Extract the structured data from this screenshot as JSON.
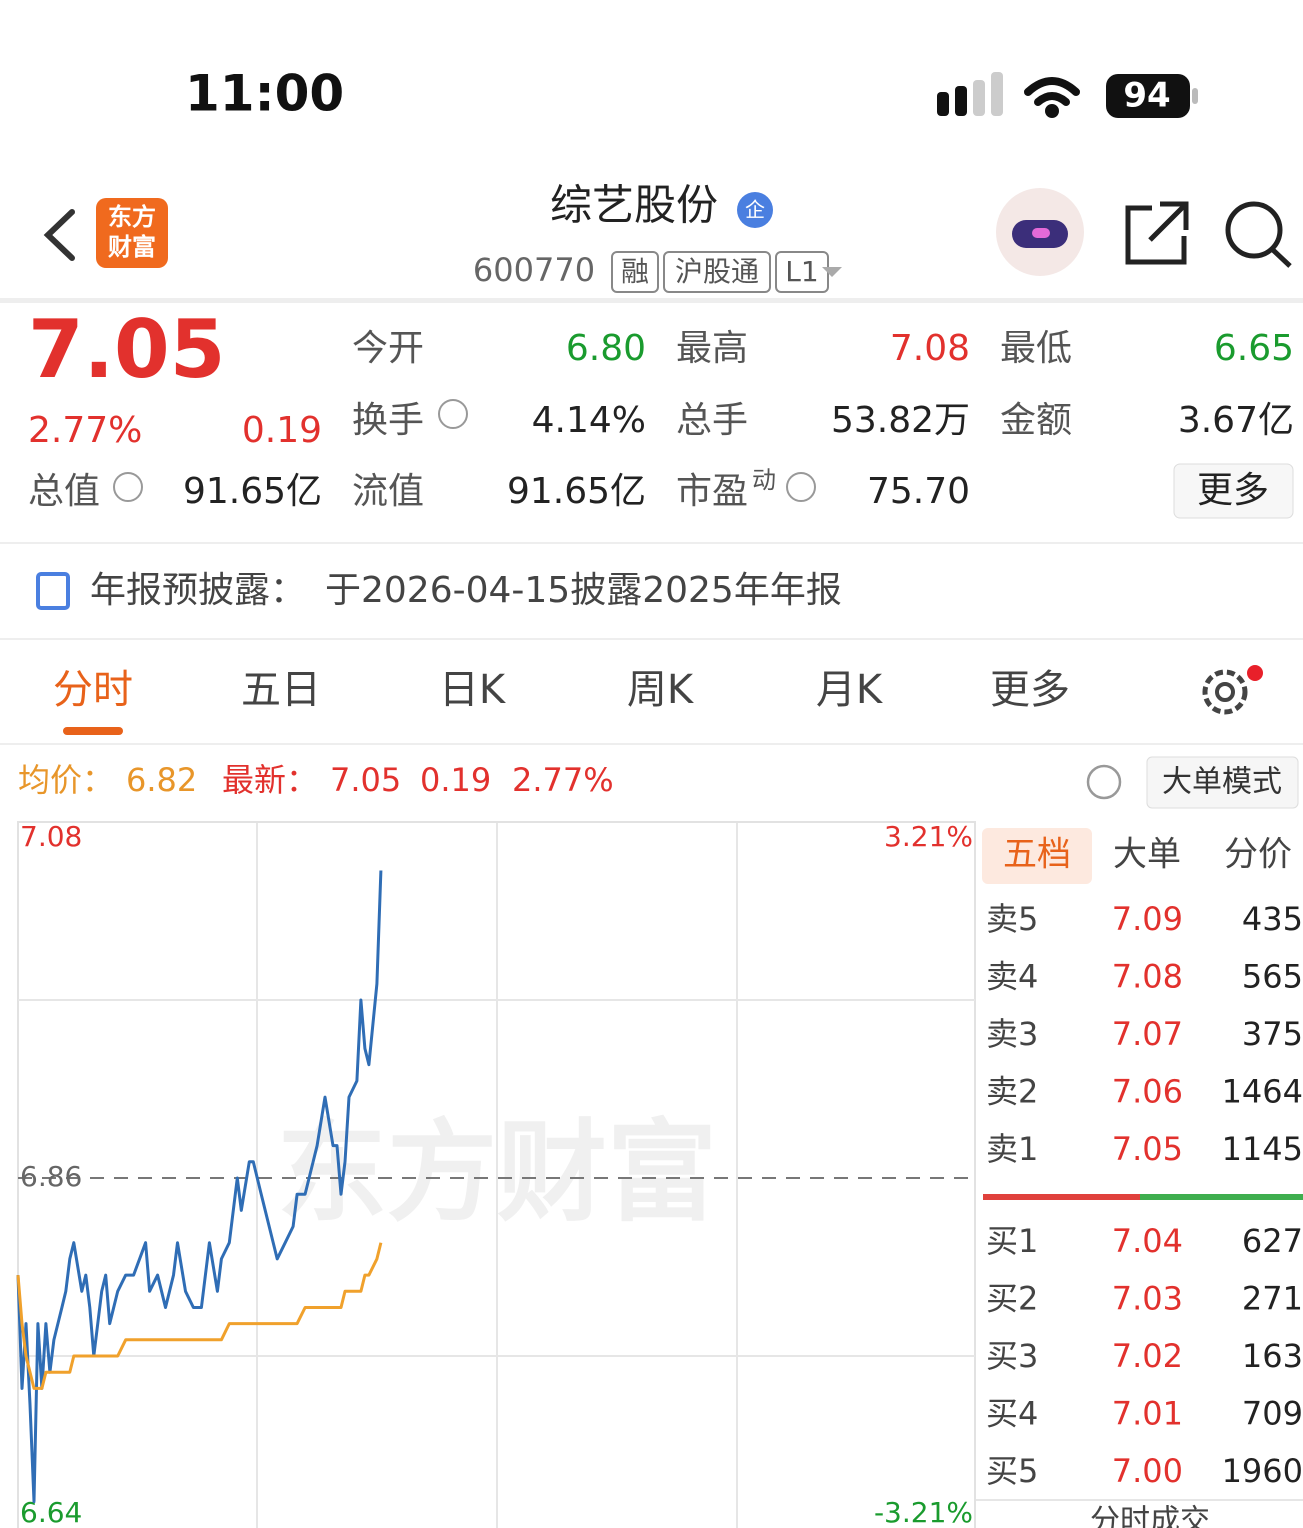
{
  "status_bar": {
    "time": "11:00",
    "battery": "94"
  },
  "header": {
    "brand": [
      "东方",
      "财富"
    ],
    "name": "综艺股份",
    "badge": "企",
    "code": "600770",
    "tags": [
      "融",
      "沪股通",
      "L1"
    ]
  },
  "quote": {
    "price": "7.05",
    "change_percent": "2.77%",
    "change": "0.19",
    "fields": [
      {
        "label": "今开",
        "value": "6.80",
        "color": "#1a9b2e"
      },
      {
        "label": "最高",
        "value": "7.08",
        "color": "#e2312d"
      },
      {
        "label": "最低",
        "value": "6.65",
        "color": "#1a9b2e"
      },
      {
        "label": "换手",
        "value": "4.14%"
      },
      {
        "label": "总手",
        "value": "53.82万"
      },
      {
        "label": "金额",
        "value": "3.67亿"
      },
      {
        "label": "总值",
        "value": "91.65亿"
      },
      {
        "label": "流值",
        "value": "91.65亿"
      },
      {
        "label": "市盈",
        "superscript": "动",
        "value": "75.70"
      }
    ],
    "more_button": "更多"
  },
  "notice": {
    "label": "年报预披露：",
    "text": "于2026-04-15披露2025年年报"
  },
  "tabs": {
    "items": [
      "分时",
      "五日",
      "日K",
      "周K",
      "月K",
      "更多"
    ],
    "active": 0
  },
  "info_bar": {
    "avg_label": "均价：",
    "avg": "6.82",
    "latest_label": "最新：",
    "latest": "7.05",
    "change": "0.19",
    "change_percent": "2.77%",
    "mode_button": "大单模式"
  },
  "chart_data": {
    "type": "line",
    "watermark": "东方财富",
    "x": [
      0,
      1,
      2,
      3,
      4,
      5,
      6,
      7,
      8,
      9,
      11,
      12,
      13,
      14,
      16,
      17,
      18,
      19,
      21,
      22,
      23,
      24,
      25,
      27,
      29,
      32,
      33,
      35,
      37,
      39,
      40,
      42,
      44,
      46,
      47,
      48,
      50,
      51,
      53,
      55,
      56,
      58,
      59,
      61,
      62,
      64,
      65,
      67,
      69,
      70,
      72,
      74,
      75,
      77,
      79,
      80,
      81,
      82,
      83,
      85,
      86,
      87,
      88,
      90,
      91
    ],
    "xlim": [
      0,
      240
    ],
    "ylim": [
      6.64,
      7.08
    ],
    "yticks": [
      6.64,
      6.86,
      7.08
    ],
    "y2lim": [
      -3.21,
      3.21
    ],
    "y2ticks": [
      {
        "value": -3.21,
        "label": "-3.21%"
      },
      {
        "value": 3.21,
        "label": "3.21%"
      }
    ],
    "series": [
      {
        "color": "#2f6db5",
        "values": [
          6.8,
          6.73,
          6.77,
          6.72,
          6.66,
          6.77,
          6.73,
          6.77,
          6.74,
          6.76,
          6.78,
          6.79,
          6.81,
          6.82,
          6.79,
          6.8,
          6.78,
          6.75,
          6.79,
          6.8,
          6.77,
          6.78,
          6.79,
          6.8,
          6.8,
          6.82,
          6.79,
          6.8,
          6.78,
          6.8,
          6.82,
          6.79,
          6.78,
          6.78,
          6.8,
          6.82,
          6.79,
          6.81,
          6.82,
          6.86,
          6.84,
          6.87,
          6.87,
          6.85,
          6.84,
          6.82,
          6.81,
          6.82,
          6.83,
          6.85,
          6.85,
          6.87,
          6.88,
          6.91,
          6.88,
          6.88,
          6.85,
          6.87,
          6.91,
          6.92,
          6.97,
          6.94,
          6.93,
          6.98,
          7.05
        ]
      },
      {
        "color": "#f0a12c",
        "values": [
          6.8,
          6.77,
          6.75,
          6.74,
          6.73,
          6.73,
          6.73,
          6.74,
          6.74,
          6.74,
          6.74,
          6.74,
          6.74,
          6.75,
          6.75,
          6.75,
          6.75,
          6.75,
          6.75,
          6.75,
          6.75,
          6.75,
          6.75,
          6.76,
          6.76,
          6.76,
          6.76,
          6.76,
          6.76,
          6.76,
          6.76,
          6.76,
          6.76,
          6.76,
          6.76,
          6.76,
          6.76,
          6.76,
          6.77,
          6.77,
          6.77,
          6.77,
          6.77,
          6.77,
          6.77,
          6.77,
          6.77,
          6.77,
          6.77,
          6.77,
          6.78,
          6.78,
          6.78,
          6.78,
          6.78,
          6.78,
          6.78,
          6.79,
          6.79,
          6.79,
          6.79,
          6.8,
          6.8,
          6.81,
          6.82
        ]
      }
    ]
  },
  "order_book": {
    "tabs": [
      "五档",
      "大单",
      "分价"
    ],
    "asks": [
      {
        "label": "卖5",
        "price": "7.09",
        "volume": "435"
      },
      {
        "label": "卖4",
        "price": "7.08",
        "volume": "565"
      },
      {
        "label": "卖3",
        "price": "7.07",
        "volume": "375"
      },
      {
        "label": "卖2",
        "price": "7.06",
        "volume": "1464"
      },
      {
        "label": "卖1",
        "price": "7.05",
        "volume": "1145"
      }
    ],
    "bids": [
      {
        "label": "买1",
        "price": "7.04",
        "volume": "627"
      },
      {
        "label": "买2",
        "price": "7.03",
        "volume": "271"
      },
      {
        "label": "买3",
        "price": "7.02",
        "volume": "163"
      },
      {
        "label": "买4",
        "price": "7.01",
        "volume": "709"
      },
      {
        "label": "买5",
        "price": "7.00",
        "volume": "1960"
      }
    ],
    "footer": "分时成交"
  }
}
